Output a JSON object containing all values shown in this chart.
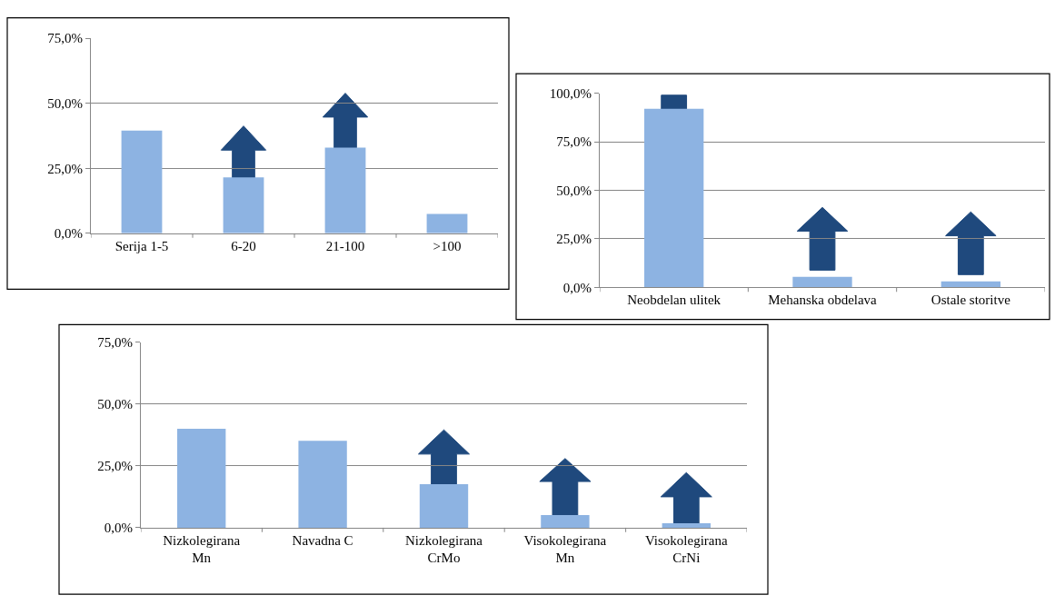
{
  "chart_data": [
    {
      "type": "bar",
      "categories": [
        "Serija 1-5",
        "6-20",
        "21-100",
        ">100"
      ],
      "values": [
        39.5,
        21.5,
        33,
        7.5
      ],
      "color": "#8db3e2",
      "ylim": [
        0,
        75
      ],
      "yticks": [
        {
          "value": 0,
          "label": "0,0%"
        },
        {
          "value": 25,
          "label": "25,0%"
        },
        {
          "value": 50,
          "label": "50,0%"
        },
        {
          "value": 75,
          "label": "75,0%"
        }
      ],
      "grid": "y"
    },
    {
      "type": "bar",
      "categories": [
        "Neobdelan ulitek",
        "Mehanska obdelava",
        "Ostale storitve"
      ],
      "values": [
        92,
        5.4,
        3.1
      ],
      "color": "#8db3e2",
      "ylim": [
        0,
        100
      ],
      "yticks": [
        {
          "value": 0,
          "label": "0,0%"
        },
        {
          "value": 25,
          "label": "25,0%"
        },
        {
          "value": 50,
          "label": "50,0%"
        },
        {
          "value": 75,
          "label": "75,0%"
        },
        {
          "value": 100,
          "label": "100,0%"
        }
      ],
      "grid": "y"
    },
    {
      "type": "bar",
      "categories": [
        "Nizkolegirana\nMn",
        "Navadna C",
        "Nizkolegirana\nCrMo",
        "Visokolegirana\nMn",
        "Visokolegirana\nCrNi"
      ],
      "values": [
        40,
        35.2,
        17.6,
        5.1,
        1.8
      ],
      "color": "#8db3e2",
      "ylim": [
        0,
        75
      ],
      "yticks": [
        {
          "value": 0,
          "label": "0,0%"
        },
        {
          "value": 25,
          "label": "25,0%"
        },
        {
          "value": 50,
          "label": "50,0%"
        },
        {
          "value": 75,
          "label": "75,0%"
        }
      ],
      "grid": "y"
    }
  ]
}
